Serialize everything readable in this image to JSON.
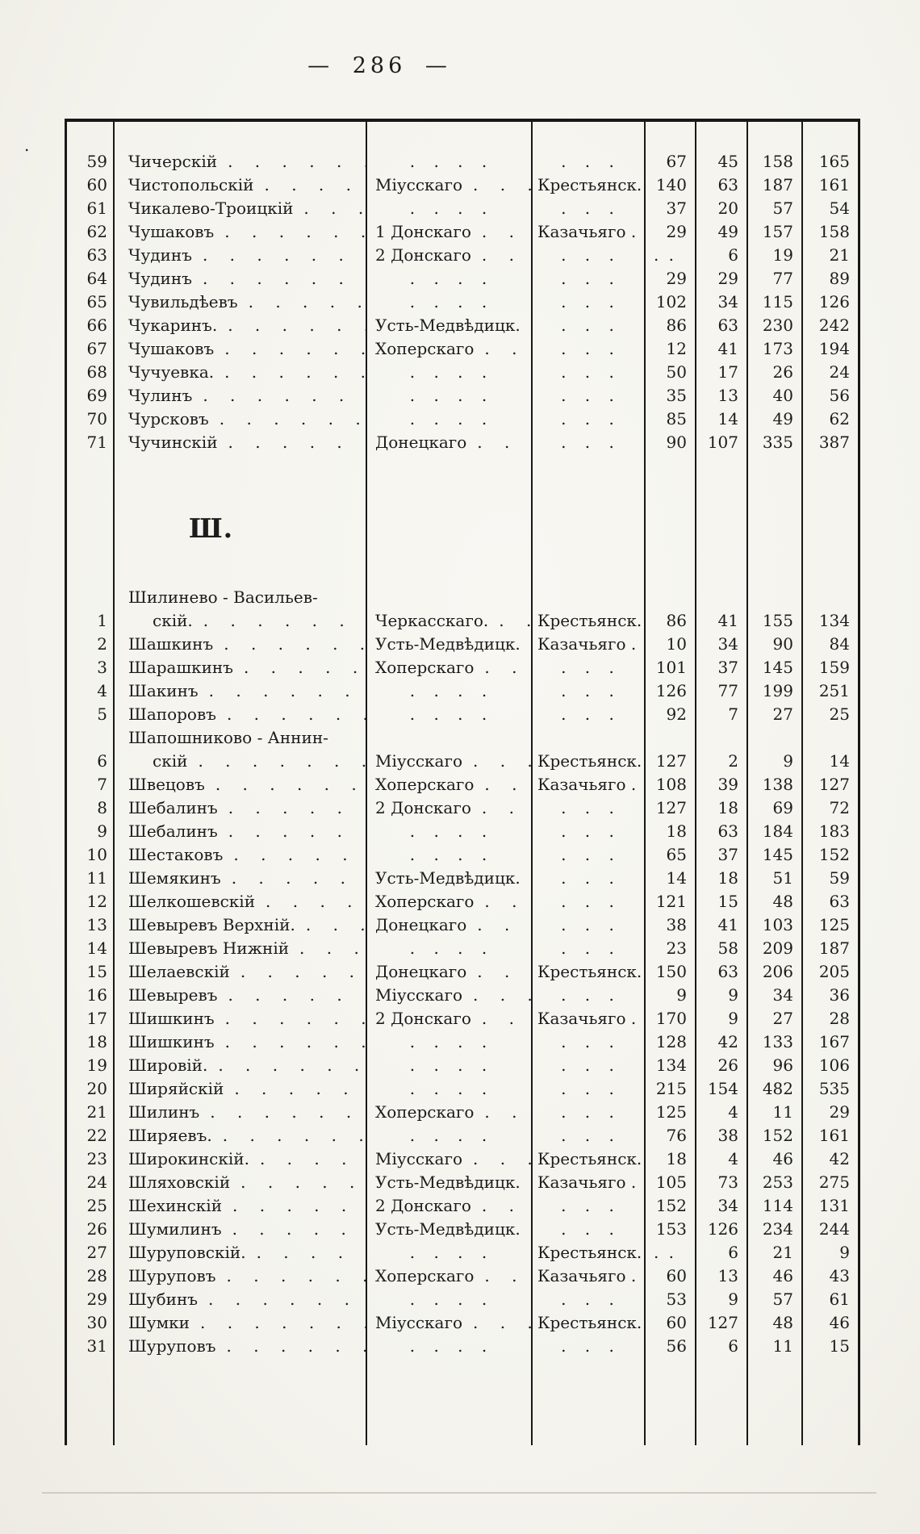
{
  "page": {
    "number_display": "— 286 —"
  },
  "table": {
    "sections": [
      {
        "heading": "",
        "rows": [
          {
            "no": "59",
            "name": "Чичерскій",
            "district": "",
            "type": "",
            "values": [
              "67",
              "45",
              "158",
              "165"
            ]
          },
          {
            "no": "60",
            "name": "Чистопольскій",
            "district": "Міусскаго",
            "type": "Крестьянск.",
            "values": [
              "140",
              "63",
              "187",
              "161"
            ]
          },
          {
            "no": "61",
            "name": "Чикалево-Троицкій",
            "district": "",
            "type": "",
            "values": [
              "37",
              "20",
              "57",
              "54"
            ]
          },
          {
            "no": "62",
            "name": "Чушаковъ",
            "district": "1 Донскаго",
            "type": "Казачьяго .",
            "values": [
              "29",
              "49",
              "157",
              "158"
            ]
          },
          {
            "no": "63",
            "name": "Чудинъ",
            "district": "2 Донскаго",
            "type": "",
            "values": [
              ". .",
              "6",
              "19",
              "21"
            ]
          },
          {
            "no": "64",
            "name": "Чудинъ",
            "district": "",
            "type": "",
            "values": [
              "29",
              "29",
              "77",
              "89"
            ]
          },
          {
            "no": "65",
            "name": "Чувильдѣевъ",
            "district": "",
            "type": "",
            "values": [
              "102",
              "34",
              "115",
              "126"
            ]
          },
          {
            "no": "66",
            "name": "Чукаринъ.",
            "district": "Усть-Медвѣдицк.",
            "type": "",
            "values": [
              "86",
              "63",
              "230",
              "242"
            ]
          },
          {
            "no": "67",
            "name": "Чушаковъ",
            "district": "Хоперскаго",
            "type": "",
            "values": [
              "12",
              "41",
              "173",
              "194"
            ]
          },
          {
            "no": "68",
            "name": "Чучуевка.",
            "district": "",
            "type": "",
            "values": [
              "50",
              "17",
              "26",
              "24"
            ]
          },
          {
            "no": "69",
            "name": "Чулинъ",
            "district": "",
            "type": "",
            "values": [
              "35",
              "13",
              "40",
              "56"
            ]
          },
          {
            "no": "70",
            "name": "Чурсковъ",
            "district": "",
            "type": "",
            "values": [
              "85",
              "14",
              "49",
              "62"
            ]
          },
          {
            "no": "71",
            "name": "Чучинскій",
            "district": "Донецкаго",
            "type": "",
            "values": [
              "90",
              "107",
              "335",
              "387"
            ]
          }
        ]
      },
      {
        "heading": "Ш.",
        "rows": [
          {
            "no": "1",
            "name": "Шилинево - Васильев-",
            "name2": "скій.",
            "district": "Черкасскаго.",
            "type": "Крестьянск.",
            "values": [
              "86",
              "41",
              "155",
              "134"
            ]
          },
          {
            "no": "2",
            "name": "Шашкинъ",
            "district": "Усть-Медвѣдицк.",
            "type": "Казачьяго .",
            "values": [
              "10",
              "34",
              "90",
              "84"
            ]
          },
          {
            "no": "3",
            "name": "Шарашкинъ",
            "district": "Хоперскаго",
            "type": "",
            "values": [
              "101",
              "37",
              "145",
              "159"
            ]
          },
          {
            "no": "4",
            "name": "Шакинъ",
            "district": "",
            "type": "",
            "values": [
              "126",
              "77",
              "199",
              "251"
            ]
          },
          {
            "no": "5",
            "name": "Шапоровъ",
            "district": "",
            "type": "",
            "values": [
              "92",
              "7",
              "27",
              "25"
            ]
          },
          {
            "no": "6",
            "name": "Шапошниково - Аннин-",
            "name2": "скій",
            "district": "Міусскаго",
            "type": "Крестьянск.",
            "values": [
              "127",
              "2",
              "9",
              "14"
            ]
          },
          {
            "no": "7",
            "name": "Швецовъ",
            "district": "Хоперскаго",
            "type": "Казачьяго .",
            "values": [
              "108",
              "39",
              "138",
              "127"
            ]
          },
          {
            "no": "8",
            "name": "Шебалинъ",
            "district": "2 Донскаго",
            "type": "",
            "values": [
              "127",
              "18",
              "69",
              "72"
            ]
          },
          {
            "no": "9",
            "name": "Шебалинъ",
            "district": "",
            "type": "",
            "values": [
              "18",
              "63",
              "184",
              "183"
            ]
          },
          {
            "no": "10",
            "name": "Шестаковъ",
            "district": "",
            "type": "",
            "values": [
              "65",
              "37",
              "145",
              "152"
            ]
          },
          {
            "no": "11",
            "name": "Шемякинъ",
            "district": "Усть-Медвѣдицк.",
            "type": "",
            "values": [
              "14",
              "18",
              "51",
              "59"
            ]
          },
          {
            "no": "12",
            "name": "Шелкошевскій",
            "district": "Хоперскаго",
            "type": "",
            "values": [
              "121",
              "15",
              "48",
              "63"
            ]
          },
          {
            "no": "13",
            "name": "Шевыревъ Верхній.",
            "district": "Донецкаго",
            "type": "",
            "values": [
              "38",
              "41",
              "103",
              "125"
            ]
          },
          {
            "no": "14",
            "name": "Шевыревъ Нижній",
            "district": "",
            "type": "",
            "values": [
              "23",
              "58",
              "209",
              "187"
            ]
          },
          {
            "no": "15",
            "name": "Шелаевскій",
            "district": "Донецкаго",
            "type": "Крестьянск.",
            "values": [
              "150",
              "63",
              "206",
              "205"
            ]
          },
          {
            "no": "16",
            "name": "Шевыревъ",
            "district": "Міусскаго",
            "type": "",
            "values": [
              "9",
              "9",
              "34",
              "36"
            ]
          },
          {
            "no": "17",
            "name": "Шишкинъ",
            "district": "2 Донскаго",
            "type": "Казачьяго .",
            "values": [
              "170",
              "9",
              "27",
              "28"
            ]
          },
          {
            "no": "18",
            "name": "Шишкинъ",
            "district": "",
            "type": "",
            "values": [
              "128",
              "42",
              "133",
              "167"
            ]
          },
          {
            "no": "19",
            "name": "Шировій.",
            "district": "",
            "type": "",
            "values": [
              "134",
              "26",
              "96",
              "106"
            ]
          },
          {
            "no": "20",
            "name": "Ширяйскій",
            "district": "",
            "type": "",
            "values": [
              "215",
              "154",
              "482",
              "535"
            ]
          },
          {
            "no": "21",
            "name": "Шилинъ",
            "district": "Хоперскаго",
            "type": "",
            "values": [
              "125",
              "4",
              "11",
              "29"
            ]
          },
          {
            "no": "22",
            "name": "Ширяевъ.",
            "district": "",
            "type": "",
            "values": [
              "76",
              "38",
              "152",
              "161"
            ]
          },
          {
            "no": "23",
            "name": "Широкинскій.",
            "district": "Міусскаго",
            "type": "Крестьянск.",
            "values": [
              "18",
              "4",
              "46",
              "42"
            ]
          },
          {
            "no": "24",
            "name": "Шляховскій",
            "district": "Усть-Медвѣдицк.",
            "type": "Казачьяго .",
            "values": [
              "105",
              "73",
              "253",
              "275"
            ]
          },
          {
            "no": "25",
            "name": "Шехинскій",
            "district": "2 Донскаго",
            "type": "",
            "values": [
              "152",
              "34",
              "114",
              "131"
            ]
          },
          {
            "no": "26",
            "name": "Шумилинъ",
            "district": "Усть-Медвѣдицк.",
            "type": "",
            "values": [
              "153",
              "126",
              "234",
              "244"
            ]
          },
          {
            "no": "27",
            "name": "Шуруповскій.",
            "district": "",
            "type": "Крестьянск.",
            "values": [
              ". .",
              "6",
              "21",
              "9"
            ]
          },
          {
            "no": "28",
            "name": "Шуруповъ",
            "district": "Хоперскаго",
            "type": "Казачьяго .",
            "values": [
              "60",
              "13",
              "46",
              "43"
            ]
          },
          {
            "no": "29",
            "name": "Шубинъ",
            "district": "",
            "type": "",
            "values": [
              "53",
              "9",
              "57",
              "61"
            ]
          },
          {
            "no": "30",
            "name": "Шумки",
            "district": "Міусскаго",
            "type": "Крестьянск.",
            "values": [
              "60",
              "127",
              "48",
              "46"
            ]
          },
          {
            "no": "31",
            "name": "Шуруповъ",
            "district": "",
            "type": "",
            "values": [
              "56",
              "6",
              "11",
              "15"
            ]
          }
        ]
      }
    ]
  }
}
